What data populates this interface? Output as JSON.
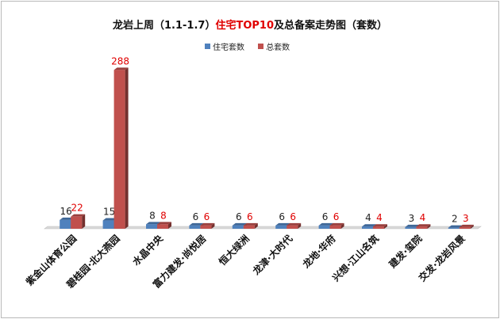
{
  "title": {
    "pre": "龙岩上周（1.1-1.7）",
    "highlight": "住宅TOP10",
    "post": "及总备案走势图（套数）"
  },
  "legend": {
    "series1": "住宅套数",
    "series2": "总套数"
  },
  "colors": {
    "series1": "#4f81bd",
    "series2": "#c0504d",
    "label1": "#222222",
    "label2": "#e00000"
  },
  "chart_data": {
    "type": "bar",
    "title": "龙岩上周（1.1-1.7）住宅TOP10及总备案走势图（套数）",
    "categories": [
      "紫金山体育公园",
      "碧桂园·北大燕园",
      "水晶中央",
      "富力建发·尚悦居",
      "恒大绿洲",
      "龙津·大时代",
      "龙地·华府",
      "兴想·江山名筑",
      "建发·玺院",
      "交发·龙岩风景"
    ],
    "series": [
      {
        "name": "住宅套数",
        "values": [
          16,
          15,
          8,
          6,
          6,
          6,
          6,
          4,
          3,
          2
        ]
      },
      {
        "name": "总套数",
        "values": [
          22,
          288,
          8,
          6,
          6,
          6,
          6,
          4,
          4,
          3
        ]
      }
    ],
    "ylim": [
      0,
      300
    ],
    "grid": false,
    "legend_position": "top"
  }
}
